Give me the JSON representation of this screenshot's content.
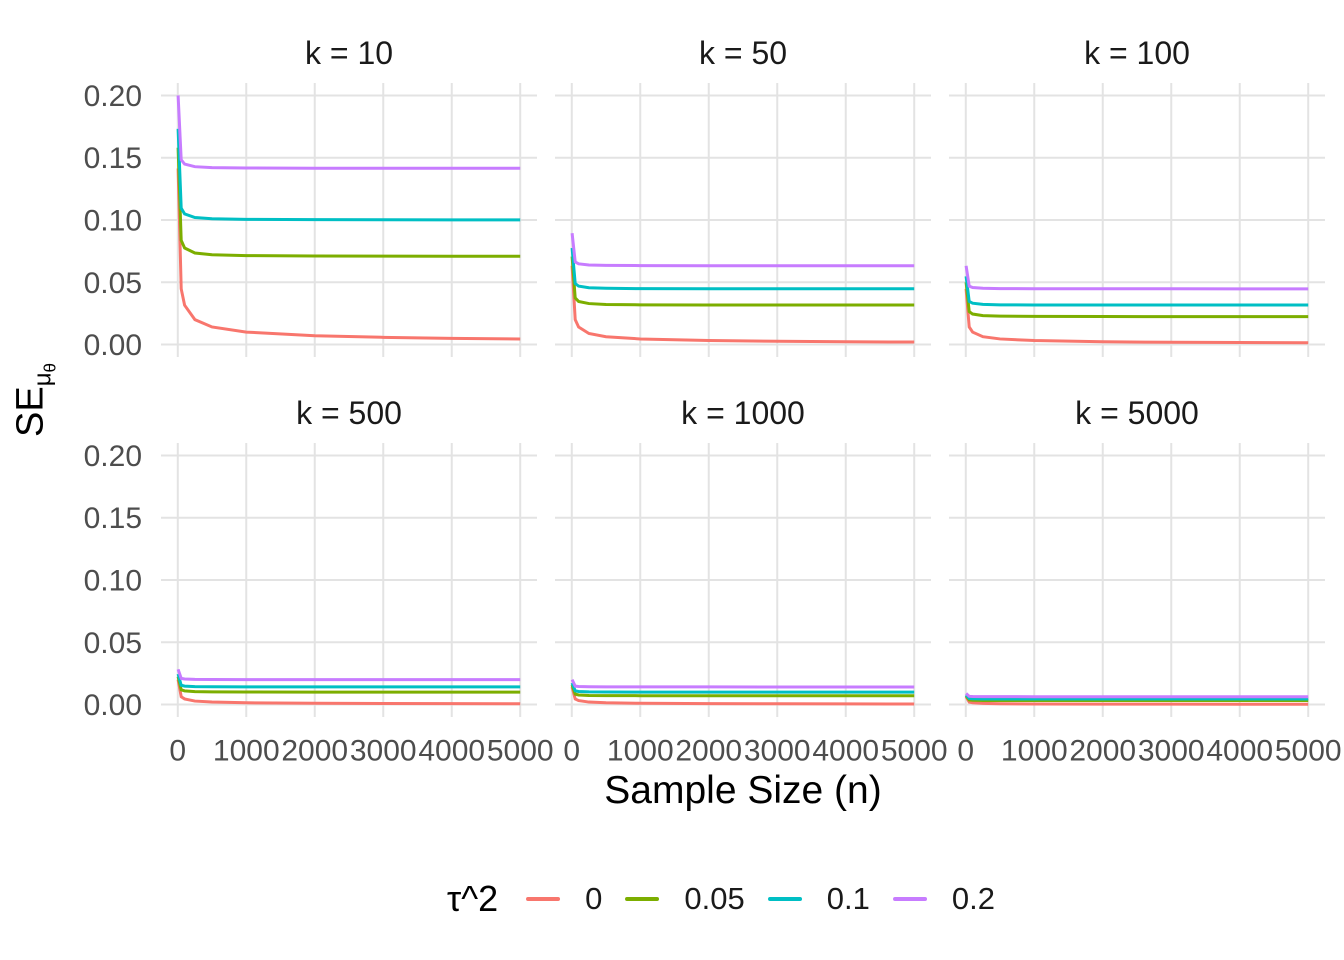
{
  "chart_data": {
    "type": "line",
    "title": "",
    "xlabel": "Sample Size (n)",
    "ylabel": {
      "base": "SE",
      "sub": "μ",
      "subsub": "θ"
    },
    "facet_variable": "k",
    "facet_titles": [
      "k = 10",
      "k = 50",
      "k = 100",
      "k = 500",
      "k = 1000",
      "k = 5000"
    ],
    "x_ticks": {
      "values": [
        0,
        1000,
        2000,
        3000,
        4000,
        5000
      ],
      "labels": [
        "0",
        "1000",
        "2000",
        "3000",
        "4000",
        "5000"
      ]
    },
    "y_ticks": {
      "values": [
        0,
        0.05,
        0.1,
        0.15,
        0.2
      ],
      "labels": [
        "0.00",
        "0.05",
        "0.10",
        "0.15",
        "0.20"
      ]
    },
    "xlim": [
      -245,
      5245
    ],
    "ylim": [
      -0.01,
      0.21
    ],
    "grid": "major",
    "gridline_color": "#e3e3e3",
    "background": "#ffffff",
    "series_names": [
      "0",
      "0.05",
      "0.1",
      "0.2"
    ],
    "series_colors": [
      "#F8766D",
      "#7CAE00",
      "#00BFC4",
      "#C77CFF"
    ],
    "legend": {
      "title": "τ^2",
      "position": "bottom",
      "entries": [
        {
          "label": "0",
          "color": "#F8766D"
        },
        {
          "label": "0.05",
          "color": "#7CAE00"
        },
        {
          "label": "0.1",
          "color": "#00BFC4"
        },
        {
          "label": "0.2",
          "color": "#C77CFF"
        }
      ]
    },
    "x": [
      5,
      50,
      100,
      250,
      500,
      1000,
      2000,
      3000,
      4000,
      5000
    ],
    "facets": [
      {
        "title": "k = 10",
        "k": 10,
        "y_by_series": [
          [
            0.1414,
            0.0447,
            0.0316,
            0.02,
            0.0141,
            0.01,
            0.0071,
            0.0058,
            0.005,
            0.0045
          ],
          [
            0.1581,
            0.0837,
            0.0775,
            0.0735,
            0.0721,
            0.0714,
            0.0711,
            0.071,
            0.0709,
            0.0709
          ],
          [
            0.1732,
            0.1095,
            0.1049,
            0.102,
            0.101,
            0.1005,
            0.1003,
            0.1002,
            0.1001,
            0.1001
          ],
          [
            0.2,
            0.1483,
            0.1449,
            0.1428,
            0.1421,
            0.1418,
            0.1416,
            0.1415,
            0.1415,
            0.1415
          ]
        ]
      },
      {
        "title": "k = 50",
        "k": 50,
        "y_by_series": [
          [
            0.0632,
            0.02,
            0.0141,
            0.0089,
            0.0063,
            0.0045,
            0.0032,
            0.0026,
            0.0022,
            0.002
          ],
          [
            0.0707,
            0.0374,
            0.0346,
            0.0329,
            0.0322,
            0.0319,
            0.0318,
            0.0317,
            0.0317,
            0.0317
          ],
          [
            0.0775,
            0.049,
            0.0469,
            0.0456,
            0.0452,
            0.0449,
            0.0448,
            0.0448,
            0.0448,
            0.0448
          ],
          [
            0.0894,
            0.0663,
            0.0648,
            0.0639,
            0.0636,
            0.0634,
            0.0633,
            0.0633,
            0.0633,
            0.0633
          ]
        ]
      },
      {
        "title": "k = 100",
        "k": 100,
        "y_by_series": [
          [
            0.0447,
            0.0141,
            0.01,
            0.0063,
            0.0045,
            0.0032,
            0.0022,
            0.0018,
            0.0016,
            0.0014
          ],
          [
            0.05,
            0.0265,
            0.0245,
            0.0232,
            0.0228,
            0.0226,
            0.0225,
            0.0224,
            0.0224,
            0.0224
          ],
          [
            0.0548,
            0.0346,
            0.0332,
            0.0323,
            0.0319,
            0.0318,
            0.0317,
            0.0317,
            0.0317,
            0.0317
          ],
          [
            0.0632,
            0.0469,
            0.0458,
            0.0452,
            0.0449,
            0.0448,
            0.0448,
            0.0448,
            0.0447,
            0.0447
          ]
        ]
      },
      {
        "title": "k = 500",
        "k": 500,
        "y_by_series": [
          [
            0.02,
            0.0063,
            0.0045,
            0.0028,
            0.002,
            0.0014,
            0.001,
            0.0008,
            0.0007,
            0.0006
          ],
          [
            0.0224,
            0.0118,
            0.011,
            0.0104,
            0.0102,
            0.0101,
            0.01,
            0.01,
            0.01,
            0.01
          ],
          [
            0.0245,
            0.0155,
            0.0148,
            0.0144,
            0.0143,
            0.0142,
            0.0142,
            0.0142,
            0.0142,
            0.0142
          ],
          [
            0.0283,
            0.021,
            0.0205,
            0.0202,
            0.0201,
            0.02,
            0.02,
            0.02,
            0.02,
            0.02
          ]
        ]
      },
      {
        "title": "k = 1000",
        "k": 1000,
        "y_by_series": [
          [
            0.0141,
            0.0045,
            0.0032,
            0.002,
            0.0014,
            0.001,
            0.0007,
            0.0006,
            0.0005,
            0.0004
          ],
          [
            0.0158,
            0.0084,
            0.0077,
            0.0073,
            0.0072,
            0.0071,
            0.0071,
            0.0071,
            0.0071,
            0.0071
          ],
          [
            0.0173,
            0.011,
            0.0105,
            0.0102,
            0.0101,
            0.01,
            0.01,
            0.01,
            0.01,
            0.01
          ],
          [
            0.02,
            0.0148,
            0.0145,
            0.0143,
            0.0142,
            0.0142,
            0.0142,
            0.0141,
            0.0141,
            0.0141
          ]
        ]
      },
      {
        "title": "k = 5000",
        "k": 5000,
        "y_by_series": [
          [
            0.0063,
            0.002,
            0.0014,
            0.0009,
            0.0006,
            0.0004,
            0.0003,
            0.0003,
            0.0002,
            0.0002
          ],
          [
            0.0071,
            0.0037,
            0.0035,
            0.0033,
            0.0032,
            0.0032,
            0.0032,
            0.0032,
            0.0032,
            0.0032
          ],
          [
            0.0077,
            0.0049,
            0.0047,
            0.0045,
            0.0045,
            0.0045,
            0.0045,
            0.0045,
            0.0045,
            0.0045
          ],
          [
            0.0089,
            0.0066,
            0.0065,
            0.0064,
            0.0064,
            0.0063,
            0.0063,
            0.0063,
            0.0063,
            0.0063
          ]
        ]
      }
    ]
  }
}
